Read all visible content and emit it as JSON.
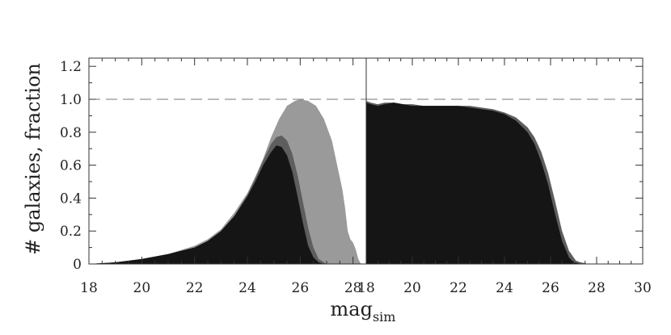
{
  "figure": {
    "ylabel": "# galaxies, fraction",
    "xlabel_main": "mag",
    "xlabel_sub": "sim"
  },
  "chart_data": [
    {
      "type": "area",
      "panel": "left",
      "xlim": [
        18,
        28.5
      ],
      "ylim": [
        0,
        1.25
      ],
      "x_ticks": [
        18,
        20,
        22,
        24,
        26,
        28
      ],
      "y_ticks": [
        0,
        0.2,
        0.4,
        0.6,
        0.8,
        1.0,
        1.2
      ],
      "y_tick_labels": [
        "0",
        "0.2",
        "0.4",
        "0.6",
        "0.8",
        "1.0",
        "1.2"
      ],
      "reference_line": 1.0,
      "grid": false,
      "colors": [
        "#9a9a9a",
        "#5e5e5e",
        "#151515"
      ],
      "series": [
        {
          "x": [
            18,
            19,
            20,
            21,
            22,
            22.5,
            23,
            23.5,
            24,
            24.3,
            24.6,
            24.9,
            25.2,
            25.5,
            25.8,
            26.0,
            26.3,
            26.6,
            26.9,
            27.2,
            27.4,
            27.6,
            27.7,
            27.8,
            27.9,
            28.0,
            28.1,
            28.2,
            28.3
          ],
          "values": [
            0,
            0.01,
            0.03,
            0.06,
            0.11,
            0.15,
            0.21,
            0.31,
            0.43,
            0.53,
            0.64,
            0.77,
            0.88,
            0.96,
            0.99,
            1.0,
            0.99,
            0.96,
            0.88,
            0.75,
            0.6,
            0.45,
            0.34,
            0.2,
            0.15,
            0.13,
            0.09,
            0.03,
            0
          ]
        },
        {
          "x": [
            18,
            19,
            20,
            21,
            22,
            22.5,
            23,
            23.5,
            24,
            24.3,
            24.6,
            24.9,
            25.1,
            25.3,
            25.5,
            25.7,
            25.9,
            26.1,
            26.3,
            26.5,
            26.7,
            26.9,
            27.0
          ],
          "values": [
            0,
            0.01,
            0.03,
            0.06,
            0.1,
            0.14,
            0.2,
            0.29,
            0.42,
            0.52,
            0.63,
            0.73,
            0.77,
            0.78,
            0.75,
            0.67,
            0.54,
            0.38,
            0.22,
            0.1,
            0.03,
            0.01,
            0
          ]
        },
        {
          "x": [
            18,
            19,
            20,
            21,
            22,
            22.5,
            23,
            23.5,
            24,
            24.3,
            24.6,
            24.9,
            25.1,
            25.3,
            25.5,
            25.7,
            25.9,
            26.1,
            26.3,
            26.5,
            26.7,
            26.9
          ],
          "values": [
            0,
            0.01,
            0.03,
            0.06,
            0.1,
            0.14,
            0.2,
            0.29,
            0.41,
            0.5,
            0.6,
            0.68,
            0.72,
            0.71,
            0.66,
            0.56,
            0.41,
            0.25,
            0.11,
            0.04,
            0.01,
            0
          ]
        }
      ]
    },
    {
      "type": "area",
      "panel": "right",
      "xlim": [
        18,
        30
      ],
      "ylim": [
        0,
        1.25
      ],
      "x_ticks": [
        18,
        20,
        22,
        24,
        26,
        28,
        30
      ],
      "reference_line": 1.0,
      "grid": false,
      "colors": [
        "#5e5e5e",
        "#151515"
      ],
      "series": [
        {
          "x": [
            18,
            18.2,
            18.5,
            18.8,
            19.2,
            19.6,
            20,
            20.5,
            21,
            21.5,
            22,
            22.5,
            23,
            23.5,
            24,
            24.5,
            25,
            25.3,
            25.6,
            25.9,
            26.2,
            26.5,
            26.8,
            27.1,
            27.3,
            27.5,
            27.6
          ],
          "values": [
            0.99,
            0.98,
            0.97,
            0.98,
            0.98,
            0.97,
            0.97,
            0.96,
            0.96,
            0.96,
            0.96,
            0.96,
            0.95,
            0.94,
            0.92,
            0.89,
            0.83,
            0.77,
            0.68,
            0.55,
            0.38,
            0.2,
            0.08,
            0.02,
            0.01,
            0.005,
            0
          ]
        },
        {
          "x": [
            18,
            18.2,
            18.5,
            18.8,
            19.2,
            19.6,
            20,
            20.5,
            21,
            21.5,
            22,
            22.5,
            23,
            23.5,
            24,
            24.5,
            25,
            25.3,
            25.6,
            25.9,
            26.2,
            26.5,
            26.8,
            27.0,
            27.2,
            27.3
          ],
          "values": [
            0.98,
            0.97,
            0.96,
            0.97,
            0.98,
            0.97,
            0.96,
            0.96,
            0.96,
            0.96,
            0.96,
            0.95,
            0.94,
            0.93,
            0.91,
            0.87,
            0.8,
            0.73,
            0.62,
            0.48,
            0.3,
            0.14,
            0.04,
            0.01,
            0.005,
            0
          ]
        }
      ]
    }
  ]
}
